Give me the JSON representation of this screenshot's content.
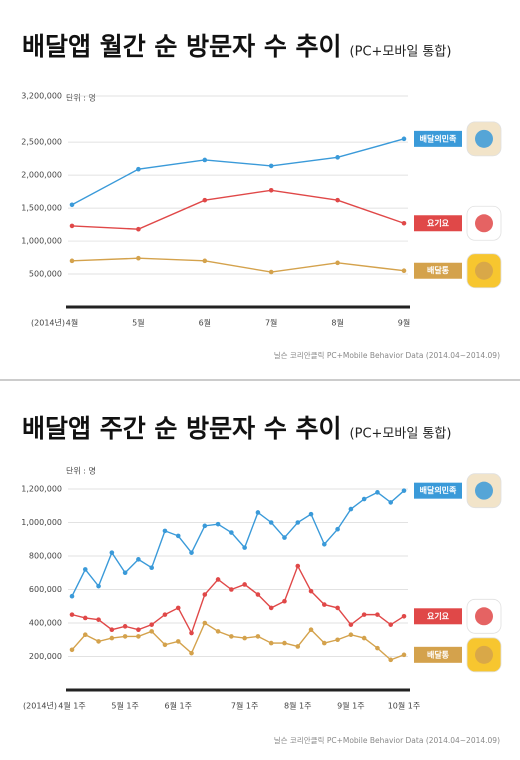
{
  "chart_data": [
    {
      "type": "line",
      "title": "배달앱 월간 순 방문자 수 추이",
      "subtitle": "(PC+모바일 통합)",
      "unit": "단위 : 명",
      "x_prefix": "(2014년)",
      "source": "닐슨 코리안클릭 PC+Mobile Behavior Data (2014.04~2014.09)",
      "categories": [
        "4월",
        "5월",
        "6월",
        "7월",
        "8월",
        "9월"
      ],
      "ylim": [
        0,
        3200000
      ],
      "yticks": [
        {
          "value": 500000,
          "label": "500,000"
        },
        {
          "value": 1000000,
          "label": "1,000,000"
        },
        {
          "value": 1500000,
          "label": "1,500,000"
        },
        {
          "value": 2000000,
          "label": "2,000,000"
        },
        {
          "value": 2500000,
          "label": "2,500,000"
        },
        {
          "value": 3200000,
          "label": "3,200,000"
        }
      ],
      "grid": true,
      "series": [
        {
          "name": "배달의민족",
          "color": "#3a9ad9",
          "values": [
            1550000,
            2090000,
            2230000,
            2140000,
            2270000,
            2550000
          ]
        },
        {
          "name": "요기요",
          "color": "#e04848",
          "values": [
            1230000,
            1180000,
            1620000,
            1770000,
            1620000,
            1270000
          ]
        },
        {
          "name": "배달통",
          "color": "#d4a24c",
          "values": [
            700000,
            740000,
            700000,
            530000,
            670000,
            550000
          ]
        }
      ]
    },
    {
      "type": "line",
      "title": "배달앱 주간 순 방문자 수 추이",
      "subtitle": "(PC+모바일 통합)",
      "unit": "단위 : 명",
      "x_prefix": "(2014년)",
      "source": "닐슨 코리안클릭 PC+Mobile Behavior Data (2014.04~2014.09)",
      "categories": [
        "4월 1주",
        null,
        null,
        null,
        "5월 1주",
        null,
        null,
        null,
        "6월 1주",
        null,
        null,
        null,
        null,
        "7월 1주",
        null,
        null,
        null,
        "8월 1주",
        null,
        null,
        null,
        "9월 1주",
        null,
        null,
        null,
        "10월 1주"
      ],
      "ylim": [
        0,
        1200000
      ],
      "yticks": [
        {
          "value": 200000,
          "label": "200,000"
        },
        {
          "value": 400000,
          "label": "400,000"
        },
        {
          "value": 600000,
          "label": "600,000"
        },
        {
          "value": 800000,
          "label": "800,000"
        },
        {
          "value": 1000000,
          "label": "1,000,000"
        },
        {
          "value": 1200000,
          "label": "1,200,000"
        }
      ],
      "grid": true,
      "series": [
        {
          "name": "배달의민족",
          "color": "#3a9ad9",
          "values": [
            560000,
            720000,
            620000,
            820000,
            700000,
            780000,
            730000,
            950000,
            920000,
            820000,
            980000,
            990000,
            940000,
            850000,
            1060000,
            1000000,
            910000,
            1000000,
            1050000,
            870000,
            960000,
            1080000,
            1140000,
            1180000,
            1120000,
            1190000
          ]
        },
        {
          "name": "요기요",
          "color": "#e04848",
          "values": [
            450000,
            430000,
            420000,
            360000,
            380000,
            360000,
            390000,
            450000,
            490000,
            340000,
            570000,
            660000,
            600000,
            630000,
            570000,
            490000,
            530000,
            740000,
            590000,
            510000,
            490000,
            390000,
            450000,
            450000,
            390000,
            440000
          ]
        },
        {
          "name": "배달통",
          "color": "#d4a24c",
          "values": [
            240000,
            330000,
            290000,
            310000,
            320000,
            320000,
            350000,
            270000,
            290000,
            220000,
            400000,
            350000,
            320000,
            310000,
            320000,
            280000,
            280000,
            260000,
            360000,
            280000,
            300000,
            330000,
            310000,
            250000,
            180000,
            210000
          ]
        }
      ]
    }
  ]
}
